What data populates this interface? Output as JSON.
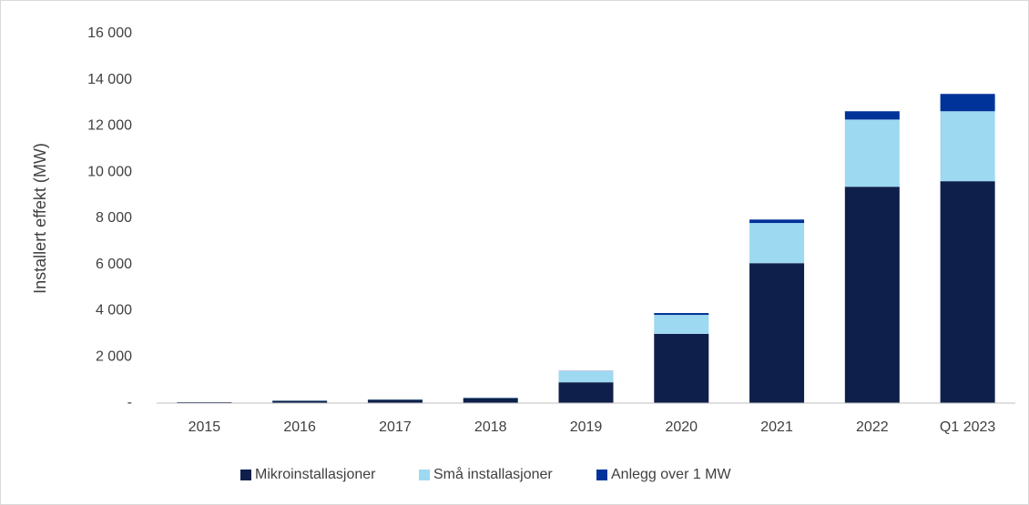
{
  "chart_data": {
    "type": "bar",
    "stacked": true,
    "y_label": "Installert effekt (MW)",
    "categories": [
      "2015",
      "2016",
      "2017",
      "2018",
      "2019",
      "2020",
      "2021",
      "2022",
      "Q1 2023"
    ],
    "series": [
      {
        "name": "Mikroinstallasjoner",
        "color": "#0f1f4b",
        "values": [
          40,
          100,
          150,
          220,
          900,
          3000,
          6060,
          9370,
          9610
        ]
      },
      {
        "name": "Små installasjoner",
        "color": "#9dd9f0",
        "values": [
          0,
          10,
          15,
          20,
          480,
          820,
          1740,
          2910,
          3030
        ]
      },
      {
        "name": "Anlegg over 1 MW",
        "color": "#003399",
        "values": [
          0,
          0,
          0,
          0,
          10,
          80,
          150,
          360,
          750
        ]
      }
    ],
    "ylim": [
      0,
      16000
    ],
    "yticks": [
      {
        "value": 0,
        "label": "-"
      },
      {
        "value": 2000,
        "label": "2 000"
      },
      {
        "value": 4000,
        "label": "4 000"
      },
      {
        "value": 6000,
        "label": "6 000"
      },
      {
        "value": 8000,
        "label": "8 000"
      },
      {
        "value": 10000,
        "label": "10 000"
      },
      {
        "value": 12000,
        "label": "12 000"
      },
      {
        "value": 14000,
        "label": "14 000"
      },
      {
        "value": 16000,
        "label": "16 000"
      }
    ],
    "legend": "bottom"
  }
}
